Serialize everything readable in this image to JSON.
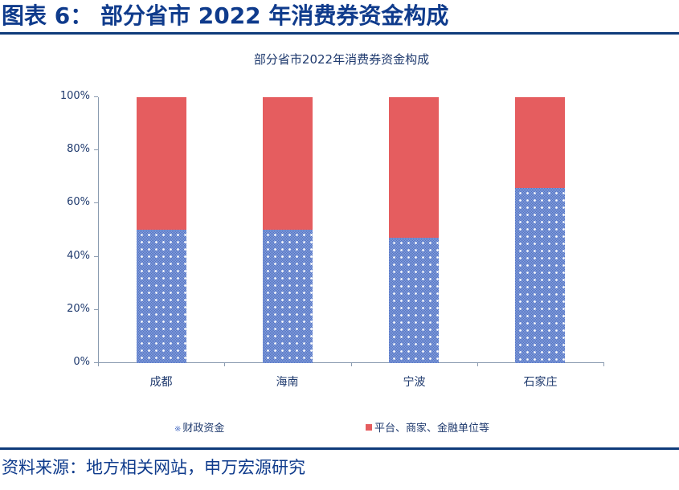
{
  "figure": {
    "title": "图表 6：  部分省市 2022 年消费券资金构成",
    "source": "资料来源：地方相关网站，申万宏源研究"
  },
  "colors": {
    "brand_blue": "#0f3b8c",
    "rule": "#0f3b7a",
    "series_fiscal": "#4f72c6",
    "series_platform": "#e55d5f",
    "axis": "#8a9bb0",
    "text": "#1f3a6e"
  },
  "chart_data": {
    "type": "bar",
    "stacked": true,
    "percent_stacked": true,
    "title": "部分省市2022年消费券资金构成",
    "xlabel": "",
    "ylabel": "",
    "ylim": [
      0,
      100
    ],
    "yticks": [
      "0%",
      "20%",
      "40%",
      "60%",
      "80%",
      "100%"
    ],
    "categories": [
      "成都",
      "海南",
      "宁波",
      "石家庄"
    ],
    "series": [
      {
        "name": "财政资金",
        "values": [
          50,
          50,
          47,
          66
        ],
        "color": "#4f72c6",
        "pattern": "dotted-checker"
      },
      {
        "name": "平台、商家、金融单位等",
        "values": [
          50,
          50,
          53,
          34
        ],
        "color": "#e55d5f"
      }
    ],
    "grid": false,
    "legend_position": "bottom"
  },
  "legend": {
    "fiscal_marker": "※",
    "fiscal_label": "财政资金",
    "platform_label": "平台、商家、金融单位等"
  }
}
